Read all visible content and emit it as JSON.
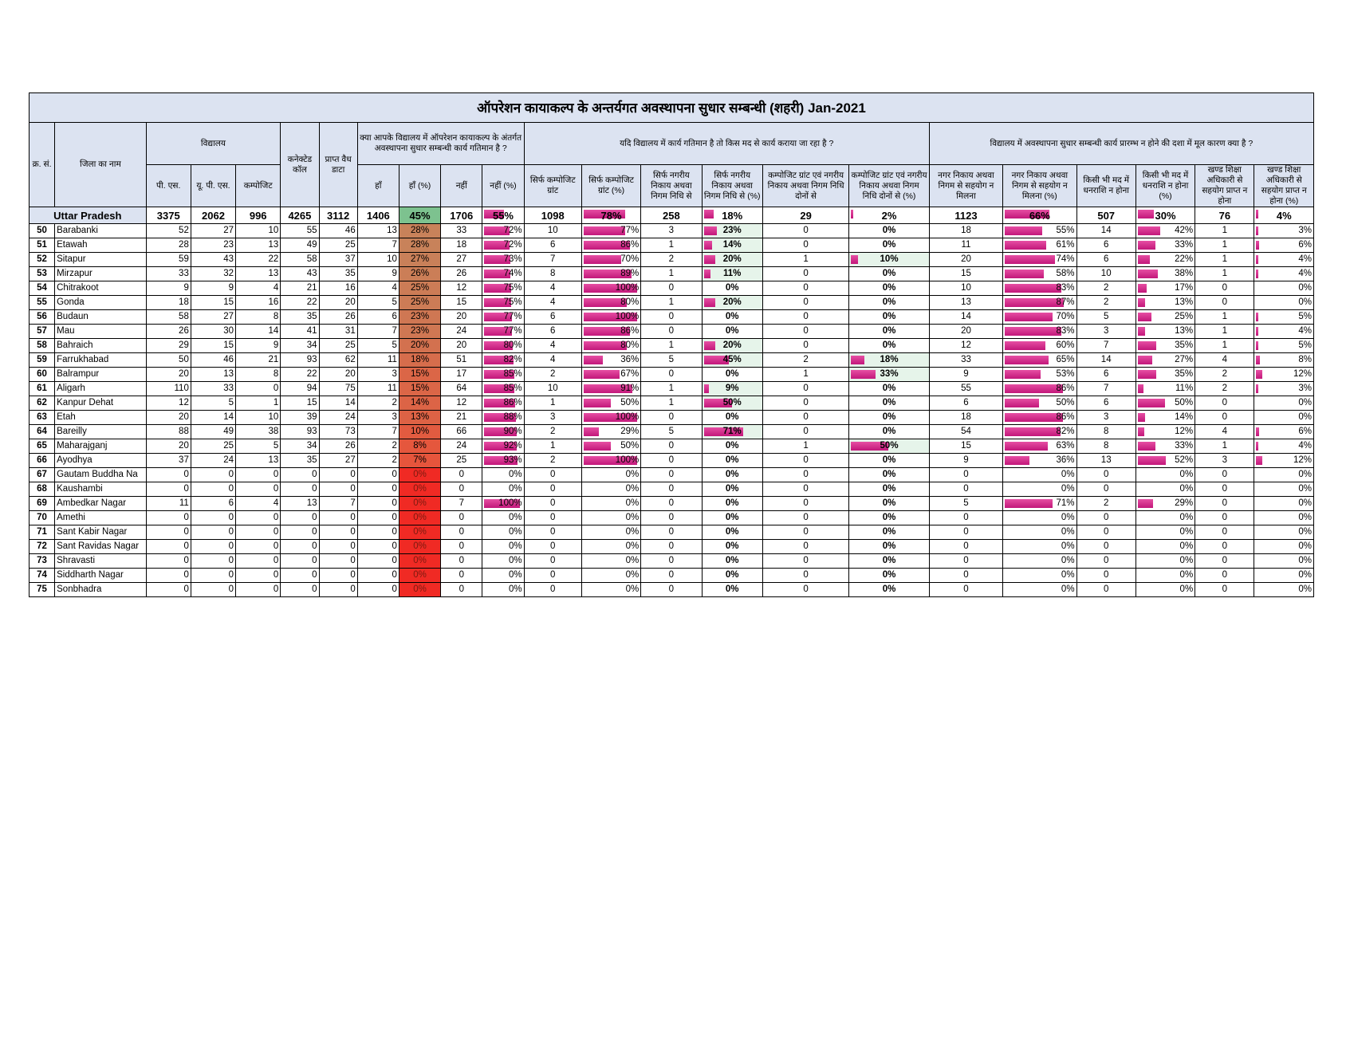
{
  "title": "ऑपरेशन कायाकल्प के अन्तर्यगत अवस्थापना सुधार सम्बन्धी (शहरी) Jan-2021",
  "headers": {
    "sr": "क्र. सं.",
    "district": "जिला का नाम",
    "school_group": "विद्यालय",
    "ps": "पी. एस.",
    "ups": "यू. पी. एस.",
    "composite": "कम्पोजिट",
    "connected": "कनेक्टेड कॉल",
    "valid": "प्राप्त वैध डाटा",
    "q1": "क्या आपके विद्यालय में ऑपरेशन कायाकल्प के अंतर्गत अवस्थापना सुधार सम्बन्धी कार्य गतिमान है ?",
    "yes": "हाँ",
    "yes_pct": "हाँ (%)",
    "no": "नहीं",
    "no_pct": "नहीं (%)",
    "q2": "यदि विद्यालय में कार्य गतिमान है तो किस मद से कार्य कराया जा रहा है ?",
    "c1": "सिर्फ कम्पोजिट ग्रांट",
    "c2": "सिर्फ कम्पोजिट ग्रांट (%)",
    "c3": "सिर्फ नगरीय निकाय अथवा निगम निधि से",
    "c4": "सिर्फ नगरीय निकाय अथवा निगम निधि से (%)",
    "c5": "कम्पोजिट ग्रांट एवं नगरीय निकाय अथवा निगम निधि दोनों से",
    "c6": "कम्पोजिट ग्रांट एवं नगरीय निकाय अथवा निगम निधि दोनों से (%)",
    "q3": "विद्यालय में अवस्थापना सुधार सम्बन्धी कार्य प्रारम्भ न होने की दशा में मूल कारण क्या है ?",
    "d1": "नगर निकाय अथवा निगम से सहयोग न मिलना",
    "d2": "नगर निकाय अथवा निगम से सहयोग न मिलना (%)",
    "d3": "किसी भी मद में धनराशि न होना",
    "d4": "किसी भी मद में धनराशि न होना (%)",
    "d5": "खण्ड शिक्षा अधिकारी से सहयोग प्राप्त न होना",
    "d6": "खण्ड शिक्षा अधिकारी से सहयोग प्राप्त न होना (%)"
  },
  "state": {
    "name": "Uttar Pradesh",
    "ps": "3375",
    "ups": "2062",
    "comp": "996",
    "conn": "4265",
    "valid": "3112",
    "yes": "1406",
    "yes_pct": "45%",
    "no": "1706",
    "no_pct": "55%",
    "c1": "1098",
    "c2": "78%",
    "c3": "258",
    "c4": "18%",
    "c5": "29",
    "c6": "2%",
    "d1": "1123",
    "d2": "66%",
    "d3": "507",
    "d4": "30%",
    "d5": "76",
    "d6": "4%"
  },
  "rows": [
    [
      "50",
      "Barabanki",
      "52",
      "27",
      "10",
      "55",
      "46",
      "13",
      "28%",
      "33",
      "72%",
      "10",
      "77%",
      "3",
      "23%",
      "0",
      "0%",
      "18",
      "55%",
      "14",
      "42%",
      "1",
      "3%"
    ],
    [
      "51",
      "Etawah",
      "28",
      "23",
      "13",
      "49",
      "25",
      "7",
      "28%",
      "18",
      "72%",
      "6",
      "86%",
      "1",
      "14%",
      "0",
      "0%",
      "11",
      "61%",
      "6",
      "33%",
      "1",
      "6%"
    ],
    [
      "52",
      "Sitapur",
      "59",
      "43",
      "22",
      "58",
      "37",
      "10",
      "27%",
      "27",
      "73%",
      "7",
      "70%",
      "2",
      "20%",
      "1",
      "10%",
      "20",
      "74%",
      "6",
      "22%",
      "1",
      "4%"
    ],
    [
      "53",
      "Mirzapur",
      "33",
      "32",
      "13",
      "43",
      "35",
      "9",
      "26%",
      "26",
      "74%",
      "8",
      "89%",
      "1",
      "11%",
      "0",
      "0%",
      "15",
      "58%",
      "10",
      "38%",
      "1",
      "4%"
    ],
    [
      "54",
      "Chitrakoot",
      "9",
      "9",
      "4",
      "21",
      "16",
      "4",
      "25%",
      "12",
      "75%",
      "4",
      "100%",
      "0",
      "0%",
      "0",
      "0%",
      "10",
      "83%",
      "2",
      "17%",
      "0",
      "0%"
    ],
    [
      "55",
      "Gonda",
      "18",
      "15",
      "16",
      "22",
      "20",
      "5",
      "25%",
      "15",
      "75%",
      "4",
      "80%",
      "1",
      "20%",
      "0",
      "0%",
      "13",
      "87%",
      "2",
      "13%",
      "0",
      "0%"
    ],
    [
      "56",
      "Budaun",
      "58",
      "27",
      "8",
      "35",
      "26",
      "6",
      "23%",
      "20",
      "77%",
      "6",
      "100%",
      "0",
      "0%",
      "0",
      "0%",
      "14",
      "70%",
      "5",
      "25%",
      "1",
      "5%"
    ],
    [
      "57",
      "Mau",
      "26",
      "30",
      "14",
      "41",
      "31",
      "7",
      "23%",
      "24",
      "77%",
      "6",
      "86%",
      "0",
      "0%",
      "0",
      "0%",
      "20",
      "83%",
      "3",
      "13%",
      "1",
      "4%"
    ],
    [
      "58",
      "Bahraich",
      "29",
      "15",
      "9",
      "34",
      "25",
      "5",
      "20%",
      "20",
      "80%",
      "4",
      "80%",
      "1",
      "20%",
      "0",
      "0%",
      "12",
      "60%",
      "7",
      "35%",
      "1",
      "5%"
    ],
    [
      "59",
      "Farrukhabad",
      "50",
      "46",
      "21",
      "93",
      "62",
      "11",
      "18%",
      "51",
      "82%",
      "4",
      "36%",
      "5",
      "45%",
      "2",
      "18%",
      "33",
      "65%",
      "14",
      "27%",
      "4",
      "8%"
    ],
    [
      "60",
      "Balrampur",
      "20",
      "13",
      "8",
      "22",
      "20",
      "3",
      "15%",
      "17",
      "85%",
      "2",
      "67%",
      "0",
      "0%",
      "1",
      "33%",
      "9",
      "53%",
      "6",
      "35%",
      "2",
      "12%"
    ],
    [
      "61",
      "Aligarh",
      "110",
      "33",
      "0",
      "94",
      "75",
      "11",
      "15%",
      "64",
      "85%",
      "10",
      "91%",
      "1",
      "9%",
      "0",
      "0%",
      "55",
      "86%",
      "7",
      "11%",
      "2",
      "3%"
    ],
    [
      "62",
      "Kanpur Dehat",
      "12",
      "5",
      "1",
      "15",
      "14",
      "2",
      "14%",
      "12",
      "86%",
      "1",
      "50%",
      "1",
      "50%",
      "0",
      "0%",
      "6",
      "50%",
      "6",
      "50%",
      "0",
      "0%"
    ],
    [
      "63",
      "Etah",
      "20",
      "14",
      "10",
      "39",
      "24",
      "3",
      "13%",
      "21",
      "88%",
      "3",
      "100%",
      "0",
      "0%",
      "0",
      "0%",
      "18",
      "86%",
      "3",
      "14%",
      "0",
      "0%"
    ],
    [
      "64",
      "Bareilly",
      "88",
      "49",
      "38",
      "93",
      "73",
      "7",
      "10%",
      "66",
      "90%",
      "2",
      "29%",
      "5",
      "71%",
      "0",
      "0%",
      "54",
      "82%",
      "8",
      "12%",
      "4",
      "6%"
    ],
    [
      "65",
      "Maharajganj",
      "20",
      "25",
      "5",
      "34",
      "26",
      "2",
      "8%",
      "24",
      "92%",
      "1",
      "50%",
      "0",
      "0%",
      "1",
      "50%",
      "15",
      "63%",
      "8",
      "33%",
      "1",
      "4%"
    ],
    [
      "66",
      "Ayodhya",
      "37",
      "24",
      "13",
      "35",
      "27",
      "2",
      "7%",
      "25",
      "93%",
      "2",
      "100%",
      "0",
      "0%",
      "0",
      "0%",
      "9",
      "36%",
      "13",
      "52%",
      "3",
      "12%"
    ],
    [
      "67",
      "Gautam Buddha Na",
      "0",
      "0",
      "0",
      "0",
      "0",
      "0",
      "0%",
      "0",
      "0%",
      "0",
      "0%",
      "0",
      "0%",
      "0",
      "0%",
      "0",
      "0%",
      "0",
      "0%",
      "0",
      "0%"
    ],
    [
      "68",
      "Kaushambi",
      "0",
      "0",
      "0",
      "0",
      "0",
      "0",
      "0%",
      "0",
      "0%",
      "0",
      "0%",
      "0",
      "0%",
      "0",
      "0%",
      "0",
      "0%",
      "0",
      "0%",
      "0",
      "0%"
    ],
    [
      "69",
      "Ambedkar Nagar",
      "11",
      "6",
      "4",
      "13",
      "7",
      "0",
      "0%",
      "7",
      "100%",
      "0",
      "0%",
      "0",
      "0%",
      "0",
      "0%",
      "5",
      "71%",
      "2",
      "29%",
      "0",
      "0%"
    ],
    [
      "70",
      "Amethi",
      "0",
      "0",
      "0",
      "0",
      "0",
      "0",
      "0%",
      "0",
      "0%",
      "0",
      "0%",
      "0",
      "0%",
      "0",
      "0%",
      "0",
      "0%",
      "0",
      "0%",
      "0",
      "0%"
    ],
    [
      "71",
      "Sant Kabir Nagar",
      "0",
      "0",
      "0",
      "0",
      "0",
      "0",
      "0%",
      "0",
      "0%",
      "0",
      "0%",
      "0",
      "0%",
      "0",
      "0%",
      "0",
      "0%",
      "0",
      "0%",
      "0",
      "0%"
    ],
    [
      "72",
      "Sant Ravidas Nagar",
      "0",
      "0",
      "0",
      "0",
      "0",
      "0",
      "0%",
      "0",
      "0%",
      "0",
      "0%",
      "0",
      "0%",
      "0",
      "0%",
      "0",
      "0%",
      "0",
      "0%",
      "0",
      "0%"
    ],
    [
      "73",
      "Shravasti",
      "0",
      "0",
      "0",
      "0",
      "0",
      "0",
      "0%",
      "0",
      "0%",
      "0",
      "0%",
      "0",
      "0%",
      "0",
      "0%",
      "0",
      "0%",
      "0",
      "0%",
      "0",
      "0%"
    ],
    [
      "74",
      "Siddharth Nagar",
      "0",
      "0",
      "0",
      "0",
      "0",
      "0",
      "0%",
      "0",
      "0%",
      "0",
      "0%",
      "0",
      "0%",
      "0",
      "0%",
      "0",
      "0%",
      "0",
      "0%",
      "0",
      "0%"
    ],
    [
      "75",
      "Sonbhadra",
      "0",
      "0",
      "0",
      "0",
      "0",
      "0",
      "0%",
      "0",
      "0%",
      "0",
      "0%",
      "0",
      "0%",
      "0",
      "0%",
      "0",
      "0%",
      "0",
      "0%",
      "0",
      "0%"
    ]
  ],
  "colors": {
    "header_bg": "#dce3f1",
    "bar": "#d63390",
    "green_bar": "#5fb679",
    "red_cell": "#f03a30"
  }
}
